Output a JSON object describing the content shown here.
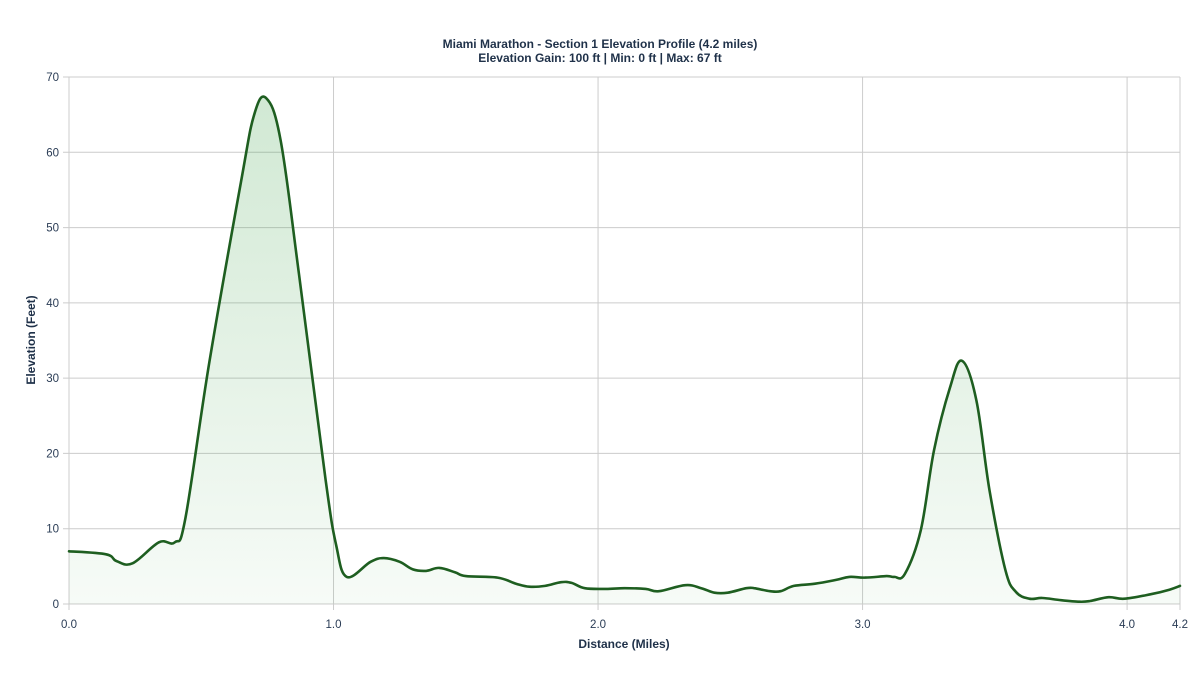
{
  "chart_data": {
    "type": "area",
    "title": "Miami Marathon - Section 1 Elevation Profile (4.2 miles)",
    "subtitle": "Elevation Gain: 100 ft | Min: 0 ft | Max: 67 ft",
    "xlabel": "Distance (Miles)",
    "ylabel": "Elevation (Feet)",
    "xlim": [
      0,
      4.2
    ],
    "ylim": [
      0,
      70
    ],
    "x_ticks": [
      0.0,
      1.0,
      2.0,
      3.0,
      4.0,
      4.2
    ],
    "x_tick_labels": [
      "0.0",
      "1.0",
      "2.0",
      "3.0",
      "4.0",
      "4.2"
    ],
    "y_ticks": [
      0,
      10,
      20,
      30,
      40,
      50,
      60,
      70
    ],
    "y_tick_labels": [
      "0",
      "10",
      "20",
      "30",
      "40",
      "50",
      "60",
      "70"
    ],
    "grid": true,
    "legend": null,
    "line_color": "#1e5e20",
    "fill_color": "#2e9a3a",
    "series": [
      {
        "name": "Elevation",
        "x": [
          0.0,
          0.14,
          0.18,
          0.24,
          0.34,
          0.4,
          0.44,
          0.53,
          0.65,
          0.7,
          0.745,
          0.8,
          0.87,
          0.97,
          1.01,
          1.05,
          1.14,
          1.19,
          1.25,
          1.3,
          1.35,
          1.4,
          1.46,
          1.5,
          1.62,
          1.69,
          1.74,
          1.8,
          1.86,
          1.9,
          1.95,
          2.03,
          2.1,
          2.18,
          2.23,
          2.33,
          2.39,
          2.44,
          2.49,
          2.56,
          2.59,
          2.65,
          2.69,
          2.74,
          2.82,
          2.9,
          2.95,
          3.01,
          3.09,
          3.12,
          3.16,
          3.22,
          3.27,
          3.33,
          3.376,
          3.43,
          3.48,
          3.54,
          3.58,
          3.63,
          3.68,
          3.75,
          3.82,
          3.86,
          3.93,
          3.99,
          4.09,
          4.16,
          4.2
        ],
        "values": [
          7.0,
          6.6,
          5.7,
          5.4,
          8.2,
          8.2,
          11.4,
          32.0,
          56.0,
          65.0,
          67.2,
          61.6,
          43.7,
          16.5,
          7.8,
          3.6,
          5.6,
          6.1,
          5.6,
          4.6,
          4.4,
          4.8,
          4.2,
          3.7,
          3.5,
          2.7,
          2.3,
          2.4,
          2.9,
          2.8,
          2.1,
          2.0,
          2.1,
          2.0,
          1.7,
          2.5,
          2.1,
          1.5,
          1.5,
          2.1,
          2.1,
          1.7,
          1.7,
          2.4,
          2.7,
          3.2,
          3.6,
          3.5,
          3.7,
          3.6,
          4.0,
          9.8,
          20.4,
          28.7,
          32.3,
          27.1,
          15.1,
          4.5,
          1.6,
          0.7,
          0.8,
          0.5,
          0.3,
          0.4,
          0.9,
          0.7,
          1.3,
          1.9,
          2.4
        ]
      }
    ]
  }
}
